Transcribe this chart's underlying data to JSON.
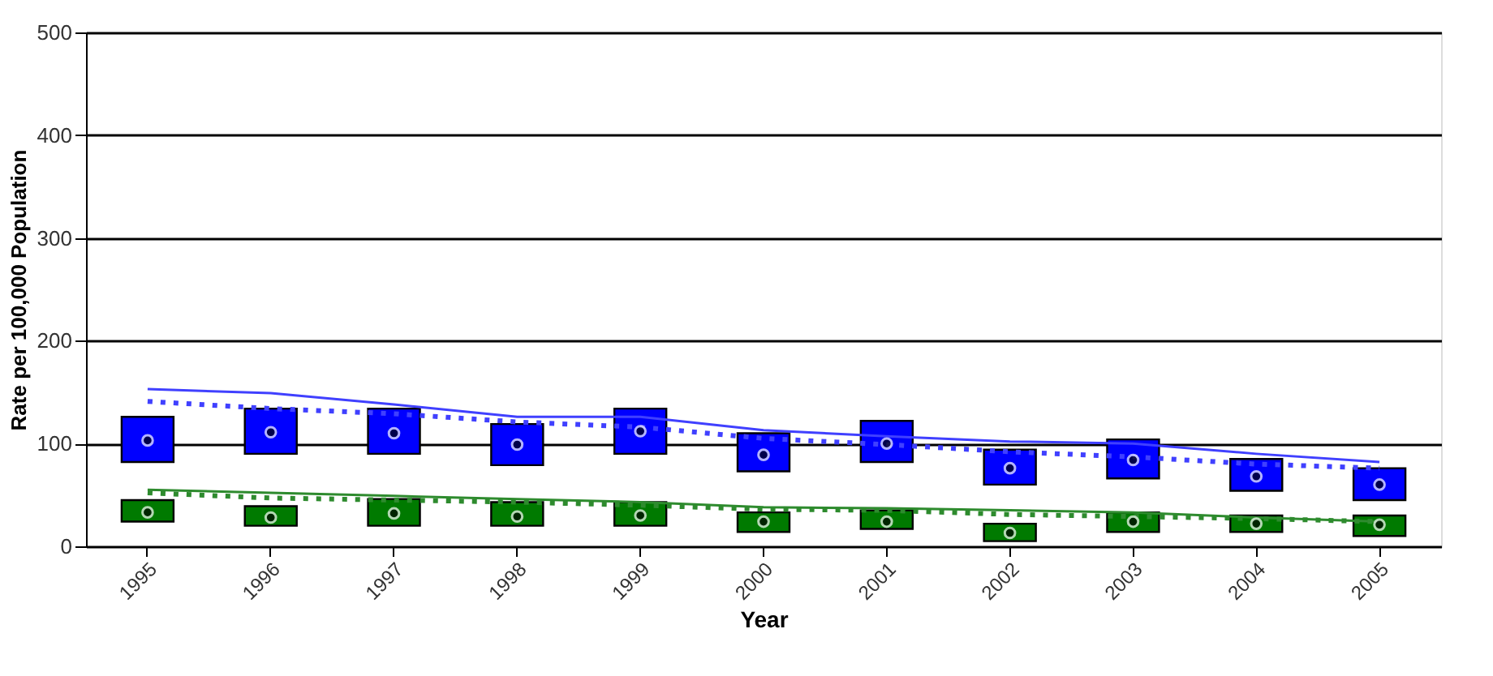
{
  "chart_data": {
    "type": "bar",
    "xlabel": "Year",
    "ylabel": "Rate per 100,000 Population",
    "categories": [
      "1995",
      "1996",
      "1997",
      "1998",
      "1999",
      "2000",
      "2001",
      "2002",
      "2003",
      "2004",
      "2005"
    ],
    "series": [
      {
        "color": "#0000ff",
        "base": [
          82,
          90,
          90,
          79,
          90,
          73,
          82,
          60,
          66,
          54,
          45
        ],
        "values": [
          44,
          44,
          44,
          40,
          44,
          37,
          40,
          34,
          38,
          31,
          31
        ]
      },
      {
        "color": "#007a00",
        "base": [
          24,
          20,
          20,
          20,
          20,
          14,
          17,
          5,
          14,
          14,
          10
        ],
        "values": [
          21,
          19,
          26,
          23,
          23,
          19,
          18,
          17,
          19,
          16,
          20
        ]
      },
      {
        "type": "line",
        "color": "#4040ff",
        "line_style": "solid",
        "values": [
          153,
          149,
          138,
          126,
          126,
          113,
          107,
          102,
          100,
          90,
          82
        ]
      },
      {
        "type": "line",
        "color": "#4040ff",
        "line_style": "dotted",
        "values": [
          141,
          134,
          129,
          121,
          116,
          105,
          99,
          92,
          87,
          80,
          76
        ]
      },
      {
        "type": "line",
        "color": "#2e8b2e",
        "line_style": "solid",
        "values": [
          55,
          52,
          49,
          46,
          43,
          38,
          37,
          35,
          33,
          28,
          24
        ]
      },
      {
        "type": "line",
        "color": "#2e8b2e",
        "line_style": "dotted",
        "values": [
          52,
          47,
          45,
          43,
          40,
          36,
          35,
          31,
          29,
          27,
          24
        ]
      },
      {
        "type": "scatter",
        "color": "#000000",
        "marker": "circle",
        "values": [
          103,
          111,
          110,
          99,
          112,
          89,
          100,
          76,
          84,
          68,
          60
        ]
      },
      {
        "type": "scatter",
        "color": "#000000",
        "marker": "circle",
        "values": [
          33,
          28,
          32,
          29,
          30,
          24,
          24,
          13,
          24,
          22,
          21
        ]
      }
    ],
    "ylim": [
      0,
      500
    ],
    "yticks": [
      0,
      100,
      200,
      300,
      400,
      500
    ],
    "grid": "y"
  }
}
